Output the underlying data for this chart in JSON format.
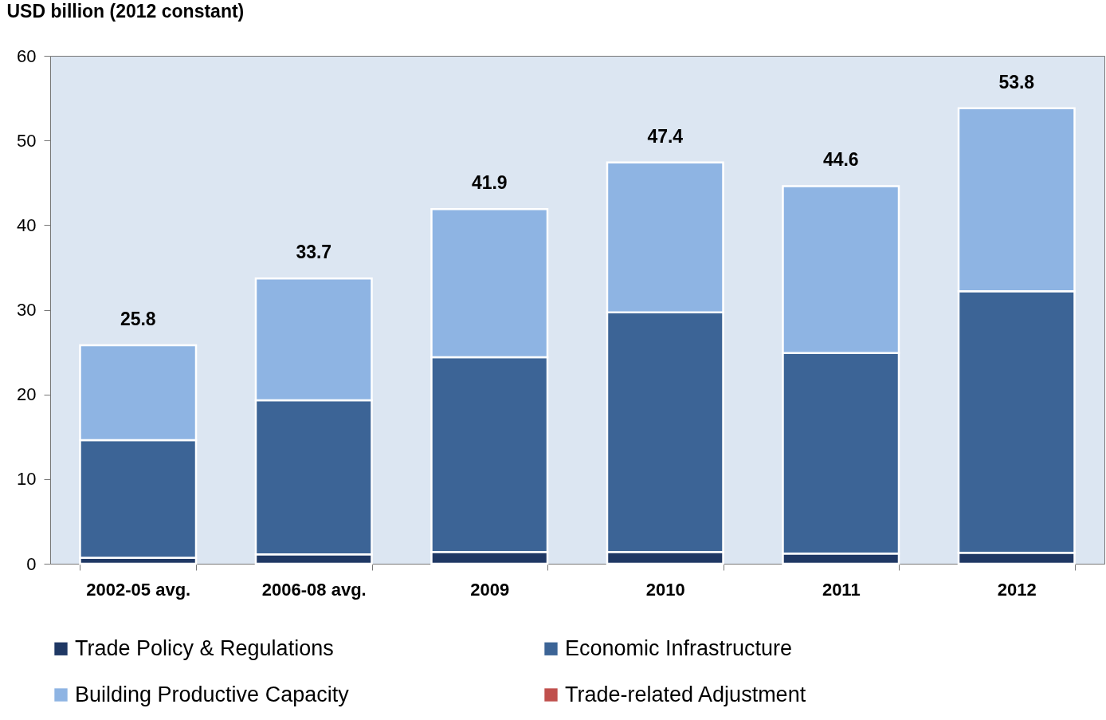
{
  "chart_data": {
    "type": "bar",
    "stacked": true,
    "ylabel": "USD billion (2012 constant)",
    "categories": [
      "2002-05 avg.",
      "2006-08 avg.",
      "2009",
      "2010",
      "2011",
      "2012"
    ],
    "series": [
      {
        "name": "Trade Policy & Regulations",
        "color": "#1f3864",
        "values": [
          0.7,
          1.1,
          1.4,
          1.4,
          1.2,
          1.3
        ]
      },
      {
        "name": "Economic Infrastructure",
        "color": "#3c6496",
        "values": [
          13.9,
          18.2,
          23.0,
          28.3,
          23.7,
          30.9
        ]
      },
      {
        "name": "Building Productive Capacity",
        "color": "#8eb4e3",
        "values": [
          11.2,
          14.4,
          17.5,
          17.7,
          19.7,
          21.6
        ]
      },
      {
        "name": "Trade-related Adjustment",
        "color": "#c0504d",
        "values": [
          null,
          null,
          null,
          null,
          null,
          null
        ]
      }
    ],
    "totals": [
      "25.8",
      "33.7",
      "41.9",
      "47.4",
      "44.6",
      "53.8"
    ],
    "ylim": [
      0,
      60
    ],
    "yticks": [
      0,
      10,
      20,
      30,
      40,
      50,
      60
    ],
    "legend": "bottom"
  }
}
